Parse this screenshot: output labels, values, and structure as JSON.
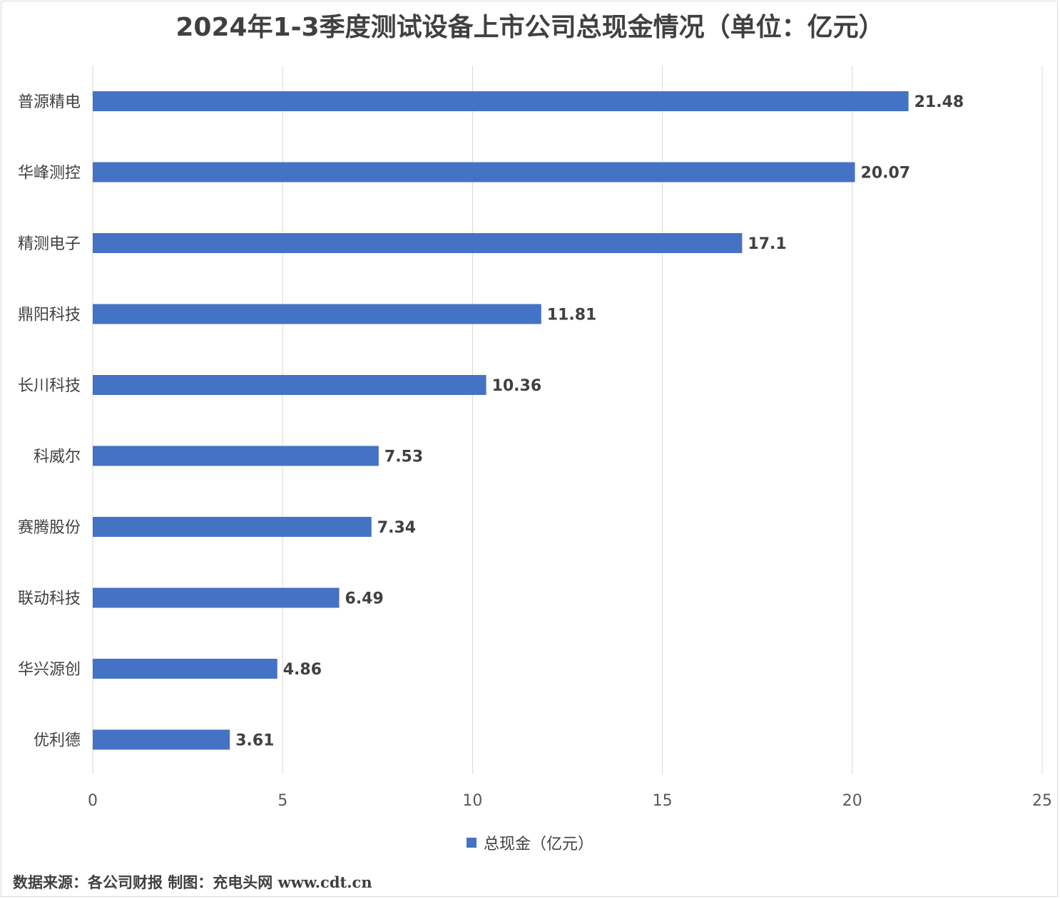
{
  "chart_data": {
    "type": "bar",
    "orientation": "horizontal",
    "title": "2024年1-3季度测试设备上市公司总现金情况（单位：亿元）",
    "categories": [
      "普源精电",
      "华峰测控",
      "精测电子",
      "鼎阳科技",
      "长川科技",
      "科威尔",
      "赛腾股份",
      "联动科技",
      "华兴源创",
      "优利德"
    ],
    "series": [
      {
        "name": "总现金（亿元）",
        "values": [
          21.48,
          20.07,
          17.1,
          11.81,
          10.36,
          7.53,
          7.34,
          6.49,
          4.86,
          3.61
        ],
        "color": "#4472c4"
      }
    ],
    "xlim": [
      0,
      25
    ],
    "xticks": [
      "0",
      "5",
      "10",
      "15",
      "20",
      "25"
    ],
    "grid": true,
    "legend_position": "bottom"
  },
  "footer": {
    "source_text": "数据来源：各公司财报  制图：充电头网 www.cdt.cn"
  },
  "colors": {
    "bar": "#4472c4",
    "grid": "#d9d9d9",
    "text": "#404040"
  }
}
